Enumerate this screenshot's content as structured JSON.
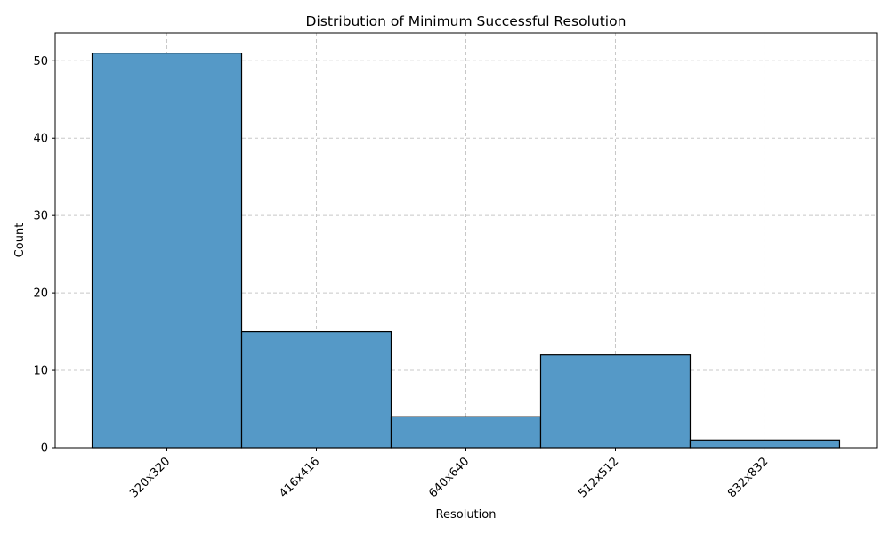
{
  "chart_data": {
    "type": "bar",
    "title": "Distribution of Minimum Successful Resolution",
    "xlabel": "Resolution",
    "ylabel": "Count",
    "categories": [
      "320x320",
      "416x416",
      "640x640",
      "512x512",
      "832x832"
    ],
    "values": [
      51,
      15,
      4,
      12,
      1
    ],
    "ylim": [
      0,
      53.6
    ],
    "yticks": [
      0,
      10,
      20,
      30,
      40,
      50
    ],
    "grid": true,
    "x_tick_rotation": 45,
    "colors": {
      "bar_fill": "#5599c7",
      "bar_edge": "#000000",
      "grid": "#c8c8c8"
    }
  }
}
